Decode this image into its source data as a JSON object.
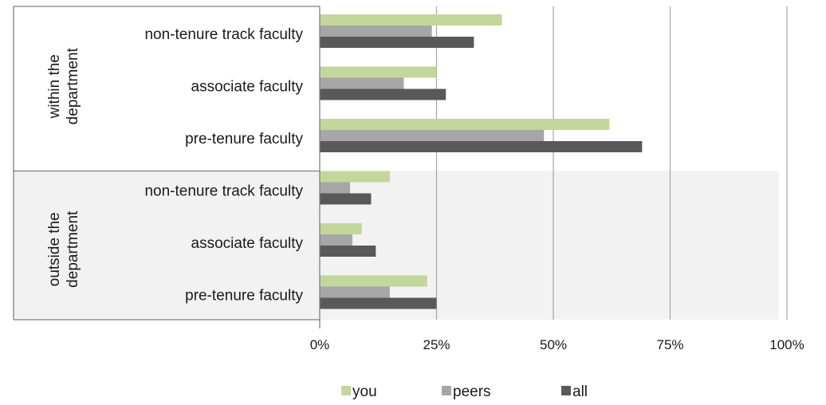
{
  "chart_data": {
    "type": "bar",
    "orientation": "horizontal",
    "groups": [
      {
        "label": "within the department",
        "categories": [
          "non-tenure track faculty",
          "associate faculty",
          "pre-tenure faculty"
        ]
      },
      {
        "label": "outside the department",
        "categories": [
          "non-tenure track faculty",
          "associate faculty",
          "pre-tenure faculty"
        ]
      }
    ],
    "series": [
      {
        "name": "you",
        "color": "#c3d69b",
        "values": [
          39,
          25,
          62,
          15,
          9,
          23
        ]
      },
      {
        "name": "peers",
        "color": "#a6a6a6",
        "values": [
          24,
          18,
          48,
          6.5,
          7,
          15
        ]
      },
      {
        "name": "all",
        "color": "#595959",
        "values": [
          33,
          27,
          69,
          11,
          12,
          25
        ]
      }
    ],
    "xlim": [
      0,
      100
    ],
    "x_ticks": [
      "0%",
      "25%",
      "50%",
      "75%",
      "100%"
    ],
    "grid": true,
    "legend": "bottom",
    "group_shading": [
      "none",
      "#f2f2f2"
    ]
  }
}
